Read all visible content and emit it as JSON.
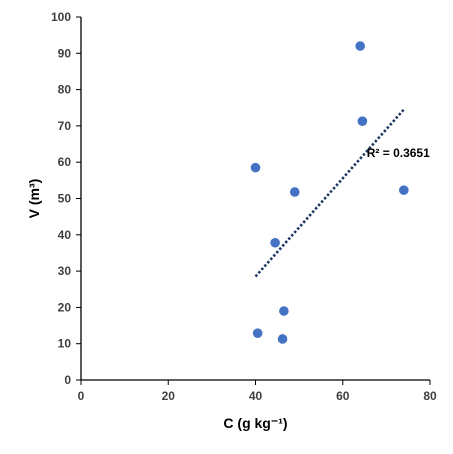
{
  "chart_data": {
    "type": "scatter",
    "title": "",
    "xlabel": "C (g kg⁻¹)",
    "ylabel": "V (m³)",
    "xlim": [
      0,
      80
    ],
    "ylim": [
      0,
      100
    ],
    "x_ticks": [
      "0",
      "20",
      "40",
      "60",
      "80"
    ],
    "y_ticks": [
      "0",
      "10",
      "20",
      "30",
      "40",
      "50",
      "60",
      "70",
      "80",
      "90",
      "100"
    ],
    "grid": false,
    "legend": "none",
    "series": [
      {
        "marker_color": "#4472C4",
        "points": [
          {
            "x": 64,
            "y": 92
          },
          {
            "x": 64.5,
            "y": 71.3
          },
          {
            "x": 40,
            "y": 58.5
          },
          {
            "x": 74,
            "y": 52.3
          },
          {
            "x": 49,
            "y": 51.8
          },
          {
            "x": 44.5,
            "y": 37.8
          },
          {
            "x": 46.5,
            "y": 19
          },
          {
            "x": 40.5,
            "y": 12.9
          },
          {
            "x": 46.2,
            "y": 11.3
          }
        ]
      }
    ],
    "trendline": {
      "type": "linear",
      "style": "dotted",
      "color": "#1F3864",
      "start": {
        "x": 40,
        "y": 28.5
      },
      "end": {
        "x": 74,
        "y": 74.5
      }
    },
    "annotation": {
      "text": "R² = 0.3651"
    }
  }
}
